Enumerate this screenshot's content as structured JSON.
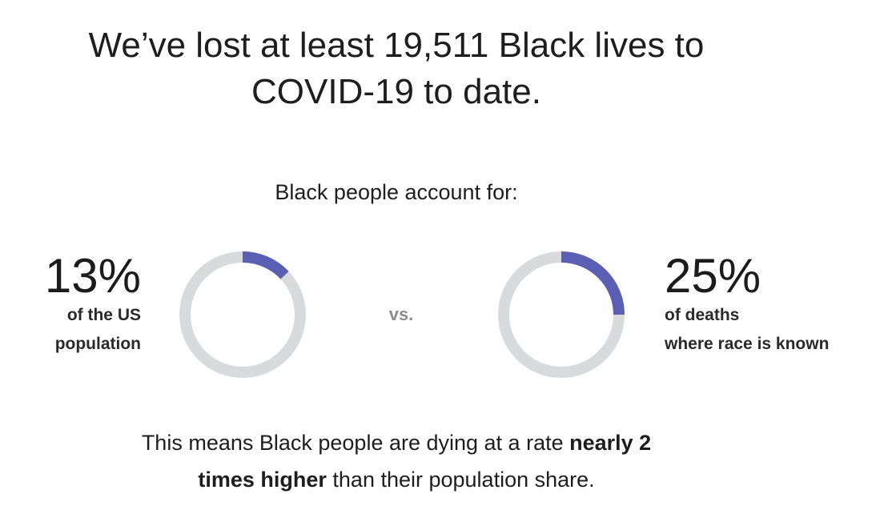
{
  "headline": {
    "line1": "We’ve lost at least 19,511 Black lives to",
    "line2": "COVID-19 to date."
  },
  "intro": "Black people account for:",
  "chart_data": [
    {
      "type": "pie",
      "value": 13,
      "value_label": "13%",
      "description": [
        "of the US",
        "population"
      ],
      "colors": {
        "filled": "#5b5fb3",
        "remaining": "#d8dadb"
      }
    },
    {
      "type": "pie",
      "value": 25,
      "value_label": "25%",
      "description": [
        "of deaths",
        "where race is known"
      ],
      "colors": {
        "filled": "#5b5fb3",
        "remaining": "#d8dadb"
      }
    }
  ],
  "vs_label": "vs.",
  "conclusion": {
    "part1": "This means Black people are dying at a rate ",
    "bold1": "nearly 2",
    "bold2": "times higher",
    "part2": " than their population share."
  }
}
